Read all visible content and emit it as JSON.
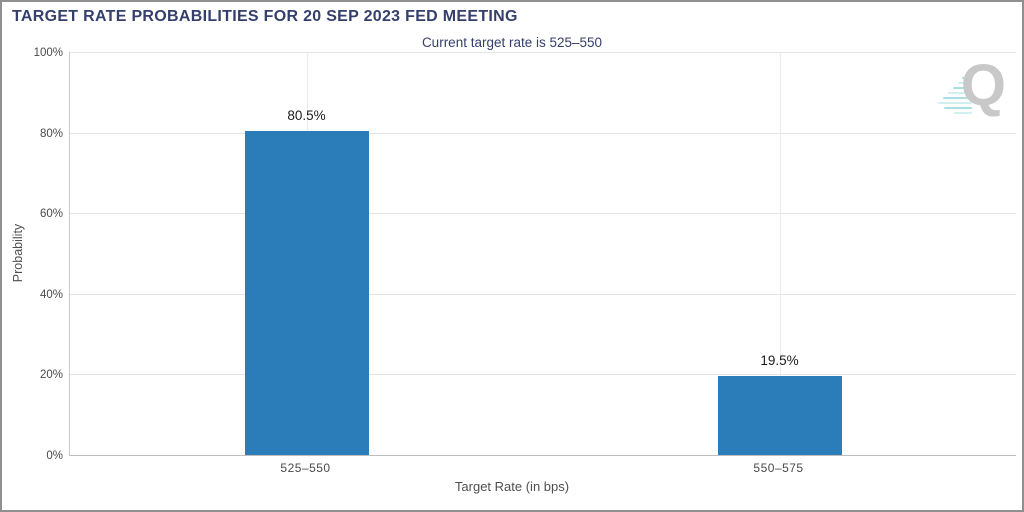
{
  "header": {
    "title": "TARGET RATE PROBABILITIES FOR 20 SEP 2023 FED MEETING",
    "subtitle": "Current target rate is 525–550"
  },
  "watermark": {
    "letter": "Q"
  },
  "colors": {
    "bar": "#2a7db9",
    "title_text": "#343f6c",
    "tick_text": "#4a4a4a",
    "data_label_text": "#1b1b1b",
    "gridline": "#e4e4e4",
    "axis_line": "#bdbdbd",
    "frame_border": "#8f8f8f",
    "watermark_q": "#c8c8c8",
    "watermark_dash": "#a9dee2"
  },
  "chart_data": {
    "type": "bar",
    "title": "TARGET RATE PROBABILITIES FOR 20 SEP 2023 FED MEETING",
    "subtitle": "Current target rate is 525–550",
    "categories": [
      "525–550",
      "550–575"
    ],
    "values": [
      80.5,
      19.5
    ],
    "value_labels": [
      "80.5%",
      "19.5%"
    ],
    "xlabel": "Target Rate (in bps)",
    "ylabel": "Probability",
    "ylim": [
      0,
      100
    ],
    "ytick_interval": 20,
    "yticks": [
      "0%",
      "20%",
      "40%",
      "60%",
      "80%",
      "100%"
    ],
    "bar_color": "#2a7db9",
    "grid": "horizontal gridlines every 20%, faint vertical gridline at each category center",
    "legend": "none"
  }
}
